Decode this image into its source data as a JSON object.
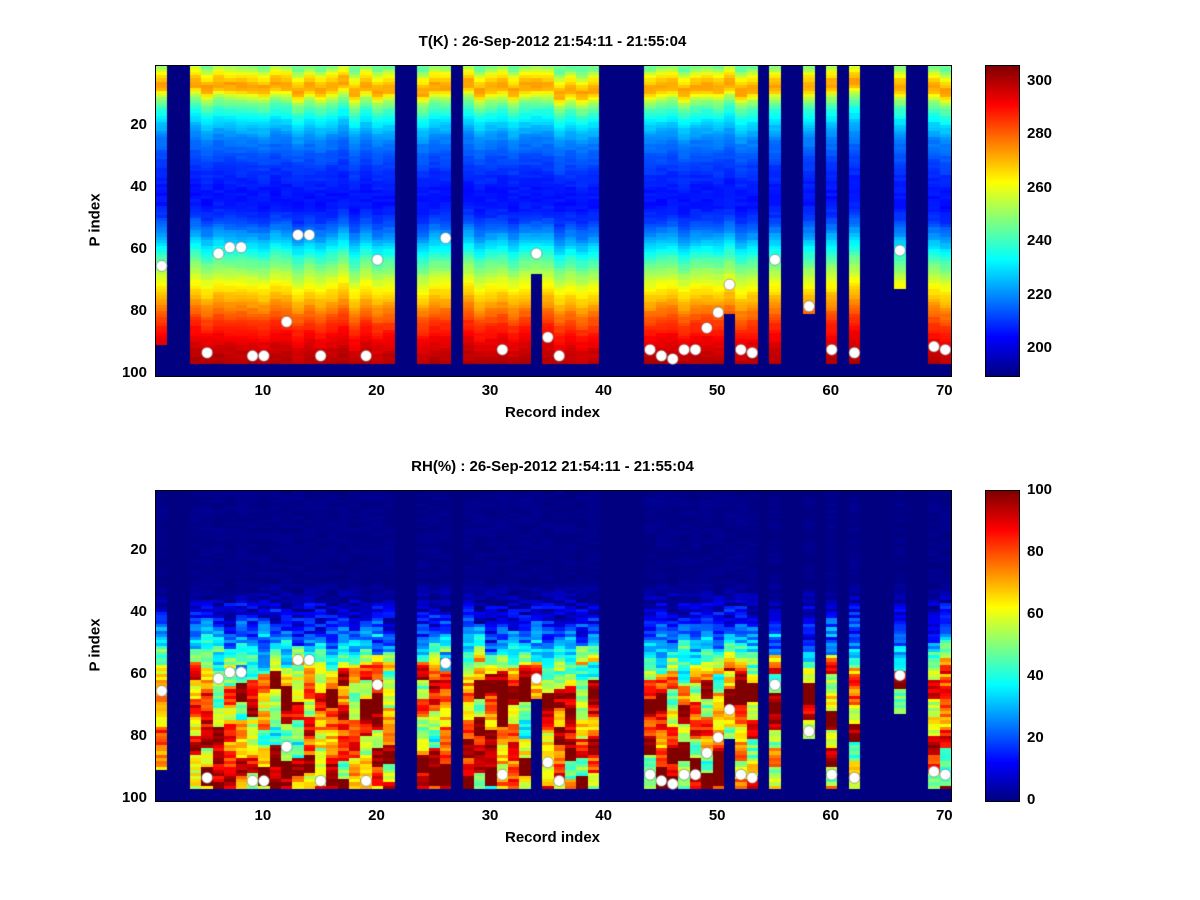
{
  "figure": {
    "background": "#ffffff",
    "axis_color": "#000000"
  },
  "chart_data": {
    "charts": [
      {
        "id": "T",
        "type": "heatmap",
        "title": "T(K) : 26-Sep-2012 21:54:11 - 21:55:04",
        "xlabel": "Record index",
        "ylabel": "P index",
        "x_range": [
          0.5,
          70.5
        ],
        "y_range": [
          0.5,
          100.5
        ],
        "y_reversed": true,
        "x_ticks": [
          10,
          20,
          30,
          40,
          50,
          60,
          70
        ],
        "y_ticks": [
          20,
          40,
          60,
          80,
          100
        ],
        "colormap": "jet",
        "clim": [
          190,
          306
        ],
        "colorbar_ticks": [
          200,
          220,
          240,
          260,
          280,
          300
        ],
        "profile": {
          "p": [
            1,
            4,
            7,
            9,
            12,
            16,
            20,
            25,
            30,
            35,
            40,
            45,
            50,
            55,
            60,
            65,
            70,
            75,
            80,
            85,
            90,
            95,
            100
          ],
          "v": [
            245,
            262,
            273,
            272,
            252,
            238,
            228,
            219,
            214,
            210,
            207,
            206,
            210,
            220,
            233,
            246,
            258,
            268,
            278,
            287,
            294,
            299,
            301
          ]
        },
        "noise": {
          "cell": 3,
          "band_shift": 5
        }
      },
      {
        "id": "RH",
        "type": "heatmap",
        "title": "RH(%) : 26-Sep-2012 21:54:11 - 21:55:04",
        "xlabel": "Record index",
        "ylabel": "P index",
        "x_range": [
          0.5,
          70.5
        ],
        "y_range": [
          0.5,
          100.5
        ],
        "y_reversed": true,
        "x_ticks": [
          10,
          20,
          30,
          40,
          50,
          60,
          70
        ],
        "y_ticks": [
          20,
          40,
          60,
          80,
          100
        ],
        "colormap": "jet",
        "clim": [
          0,
          100
        ],
        "colorbar_ticks": [
          0,
          20,
          40,
          60,
          80,
          100
        ],
        "profile": {
          "p": [
            1,
            30,
            35,
            40,
            45,
            50,
            54,
            58,
            62,
            66,
            70,
            75,
            80,
            85,
            90,
            95,
            100
          ],
          "v": [
            1,
            1,
            4,
            10,
            18,
            30,
            45,
            62,
            75,
            82,
            78,
            72,
            68,
            74,
            80,
            85,
            65
          ]
        },
        "noise": {
          "cell": 18,
          "block": 0.9
        }
      }
    ],
    "records": {
      "count": 70,
      "missing": [
        2,
        3,
        22,
        23,
        27,
        40,
        41,
        42,
        43,
        54,
        56,
        57,
        59,
        61,
        63,
        64,
        65,
        67,
        68
      ],
      "bottom_default": 96,
      "bottom_overrides": {
        "1": 90,
        "34": 67,
        "51": 80,
        "58": 80,
        "66": 72
      }
    },
    "markers": {
      "shape": "circle",
      "color": "#ffffff",
      "points": [
        [
          1,
          65
        ],
        [
          5,
          93
        ],
        [
          6,
          61
        ],
        [
          7,
          59
        ],
        [
          8,
          59
        ],
        [
          9,
          94
        ],
        [
          10,
          94
        ],
        [
          12,
          83
        ],
        [
          13,
          55
        ],
        [
          14,
          55
        ],
        [
          15,
          94
        ],
        [
          19,
          94
        ],
        [
          20,
          63
        ],
        [
          26,
          56
        ],
        [
          31,
          92
        ],
        [
          34,
          61
        ],
        [
          35,
          88
        ],
        [
          36,
          94
        ],
        [
          44,
          92
        ],
        [
          45,
          94
        ],
        [
          46,
          95
        ],
        [
          47,
          92
        ],
        [
          48,
          92
        ],
        [
          49,
          85
        ],
        [
          50,
          80
        ],
        [
          51,
          71
        ],
        [
          52,
          92
        ],
        [
          53,
          93
        ],
        [
          55,
          63
        ],
        [
          58,
          78
        ],
        [
          60,
          92
        ],
        [
          62,
          93
        ],
        [
          66,
          60
        ],
        [
          69,
          91
        ],
        [
          70,
          92
        ]
      ]
    }
  }
}
